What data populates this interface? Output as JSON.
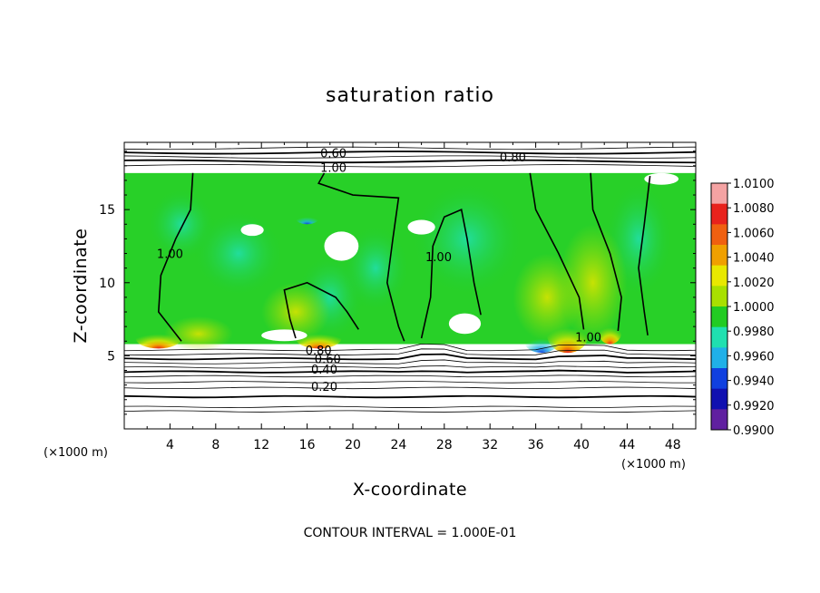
{
  "chart_data": {
    "type": "heatmap",
    "title": "saturation ratio",
    "xlabel": "X-coordinate",
    "ylabel": "Z-coordinate",
    "x_unit_label": "(×1000 m)",
    "x_unit_label_right": "(×1000 m)",
    "xlim": [
      0,
      50
    ],
    "ylim": [
      0,
      19.6
    ],
    "x_ticks": [
      4,
      8,
      12,
      16,
      20,
      24,
      28,
      32,
      36,
      40,
      44,
      48
    ],
    "x_tick_labels": [
      "4",
      "8",
      "12",
      "16",
      "20",
      "24",
      "28",
      "32",
      "36",
      "40",
      "44",
      "48"
    ],
    "y_ticks": [
      5,
      10,
      15
    ],
    "y_tick_labels": [
      "5",
      "10",
      "15"
    ],
    "colorbar": {
      "min": 0.99,
      "max": 1.01,
      "labels": [
        "1.0100",
        "1.0080",
        "1.0060",
        "1.0040",
        "1.0020",
        "1.0000",
        "0.9980",
        "0.9960",
        "0.9940",
        "0.9920",
        "0.9900"
      ],
      "colors": [
        "#f4a3a3",
        "#e8221c",
        "#f06010",
        "#f0a000",
        "#e8e800",
        "#a8e000",
        "#22cc22",
        "#20e0b0",
        "#20b0e8",
        "#1040e0",
        "#1010b0",
        "#6020a0"
      ]
    },
    "contour_interval_text": "CONTOUR INTERVAL = 1.000E-01",
    "contour_labels": [
      {
        "text": "0.60",
        "x": 18.3,
        "y": 18.9
      },
      {
        "text": "1.00",
        "x": 18.3,
        "y": 17.9
      },
      {
        "text": "0.80",
        "x": 34.0,
        "y": 18.6
      },
      {
        "text": "1.00",
        "x": 4.0,
        "y": 12.0
      },
      {
        "text": "1.00",
        "x": 27.5,
        "y": 11.8
      },
      {
        "text": "1.00",
        "x": 40.6,
        "y": 6.3
      },
      {
        "text": "0.80",
        "x": 17.0,
        "y": 5.4
      },
      {
        "text": "0.60",
        "x": 17.8,
        "y": 4.8
      },
      {
        "text": "0.40",
        "x": 17.5,
        "y": 4.1
      },
      {
        "text": "0.20",
        "x": 17.5,
        "y": 2.9
      }
    ],
    "cloud_region": {
      "z_bottom": 5.8,
      "z_top": 17.5,
      "dominant_value": 1.0
    },
    "grid": false,
    "legend": "right"
  }
}
